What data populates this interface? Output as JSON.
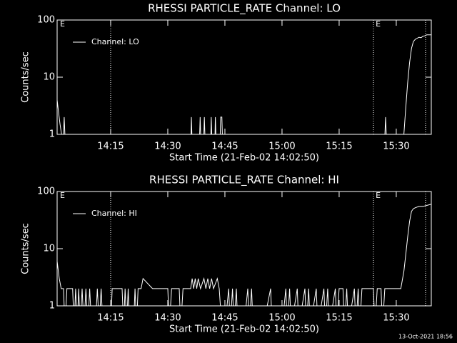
{
  "chart_data": [
    {
      "type": "line",
      "title": "RHESSI PARTICLE_RATE Channel: LO",
      "xlabel": "Start Time (21-Feb-02 14:02:50)",
      "ylabel": "Counts/sec",
      "log_y": true,
      "ylim": [
        1,
        100
      ],
      "yticks": [
        1,
        10,
        100
      ],
      "xlim": [
        0.94,
        99.2
      ],
      "xticks": [
        {
          "value": 15,
          "label": "14:15"
        },
        {
          "value": 30,
          "label": "14:30"
        },
        {
          "value": 45,
          "label": "14:45"
        },
        {
          "value": 60,
          "label": "15:00"
        },
        {
          "value": 75,
          "label": "15:15"
        },
        {
          "value": 90,
          "label": "15:30"
        }
      ],
      "vlines": [
        15,
        84,
        97.7
      ],
      "annotations": [
        {
          "text": "E",
          "x": 1.7
        },
        {
          "text": "E",
          "x": 84.6
        }
      ],
      "legend": "top-left",
      "x": [
        0.94,
        1.3,
        1.7,
        2.1,
        2.4,
        2.8,
        3.2,
        36.0,
        36.2,
        36.5,
        38.2,
        38.5,
        38.8,
        39.3,
        39.6,
        39.9,
        41.2,
        41.4,
        41.7,
        42.3,
        42.5,
        42.8,
        43.6,
        43.9,
        44.2,
        44.5,
        86.8,
        87.2,
        87.6,
        91.6,
        92,
        92.5,
        93,
        93.5,
        94,
        94.5,
        95,
        95.5,
        96,
        96.5,
        97,
        97.5,
        98,
        99.2
      ],
      "series": [
        {
          "name": "Channel: LO",
          "color": "#ffffff",
          "values": [
            4,
            2.5,
            1.5,
            1,
            0,
            2,
            0,
            0,
            2,
            0,
            0,
            2,
            0,
            0,
            2,
            0,
            0,
            2,
            0,
            0,
            2,
            0,
            0,
            2,
            2,
            0,
            0,
            2,
            0,
            0,
            1,
            3,
            8,
            18,
            32,
            42,
            46,
            48,
            50,
            49,
            52,
            53,
            55,
            55
          ]
        }
      ]
    },
    {
      "type": "line",
      "title": "RHESSI PARTICLE_RATE Channel: HI",
      "xlabel": "Start Time (21-Feb-02 14:02:50)",
      "ylabel": "Counts/sec",
      "log_y": true,
      "ylim": [
        1,
        100
      ],
      "yticks": [
        1,
        10,
        100
      ],
      "xlim": [
        0.94,
        99.2
      ],
      "xticks": [
        {
          "value": 15,
          "label": "14:15"
        },
        {
          "value": 30,
          "label": "14:30"
        },
        {
          "value": 45,
          "label": "14:45"
        },
        {
          "value": 60,
          "label": "15:00"
        },
        {
          "value": 75,
          "label": "15:15"
        },
        {
          "value": 90,
          "label": "15:30"
        }
      ],
      "vlines": [
        15,
        84,
        97.7
      ],
      "annotations": [
        {
          "text": "E",
          "x": 1.7
        },
        {
          "text": "E",
          "x": 84.6
        }
      ],
      "legend": "top-left",
      "x": [
        0.94,
        1.5,
        2,
        2.6,
        3,
        3.5,
        5,
        5.4,
        5.8,
        6.2,
        6.6,
        7,
        7.5,
        8,
        8.5,
        9,
        9.5,
        10,
        11,
        11.5,
        12,
        12.5,
        13,
        15,
        15.4,
        18,
        18.4,
        18.8,
        19.2,
        19.6,
        20,
        21,
        21.4,
        21.8,
        22.2,
        23,
        23.5,
        26,
        30,
        30.4,
        31,
        33,
        33.4,
        34,
        36,
        36.4,
        36.8,
        37.2,
        37.6,
        38,
        38.6,
        39.5,
        40,
        40.5,
        41,
        41.5,
        42,
        43,
        43.5,
        44.2,
        45,
        46,
        46.4,
        47,
        47.4,
        48,
        48.4,
        50,
        51,
        51.4,
        52,
        52.4,
        55,
        57,
        57.4,
        60,
        61,
        61.4,
        62,
        62.4,
        64,
        64.4,
        66,
        66.4,
        67,
        67.4,
        69,
        69.4,
        71,
        71.4,
        72,
        72.4,
        74,
        74.4,
        75,
        76,
        76.4,
        77,
        77.4,
        79,
        79.4,
        80,
        80.4,
        81,
        84,
        84.4,
        85,
        86,
        86.4,
        87,
        89,
        90.5,
        91.2,
        92,
        92.5,
        93,
        93.5,
        94,
        94.5,
        95,
        96,
        97,
        98,
        99.2
      ],
      "series": [
        {
          "name": "Channel: HI",
          "color": "#ffffff",
          "values": [
            6,
            3,
            2,
            2,
            0,
            2,
            2,
            0,
            2,
            0,
            2,
            0,
            2,
            0,
            2,
            0,
            2,
            0,
            0,
            2,
            0,
            2,
            0,
            0,
            2,
            2,
            0,
            2,
            0,
            2,
            0,
            0,
            2,
            0,
            2,
            2,
            3,
            2,
            2,
            0,
            2,
            2,
            0,
            2,
            2,
            3,
            2,
            3,
            2,
            3,
            2,
            3,
            2,
            3,
            2,
            3,
            2,
            3,
            2,
            0,
            0,
            2,
            0,
            2,
            0,
            2,
            0,
            0,
            2,
            0,
            2,
            0,
            0,
            2,
            0,
            0,
            2,
            0,
            2,
            0,
            2,
            0,
            2,
            0,
            2,
            0,
            2,
            0,
            2,
            0,
            2,
            0,
            2,
            0,
            2,
            2,
            0,
            2,
            0,
            2,
            0,
            2,
            0,
            2,
            2,
            0,
            2,
            2,
            0,
            2,
            2,
            2,
            2,
            4,
            8,
            16,
            30,
            45,
            50,
            52,
            55,
            55,
            57,
            60
          ]
        }
      ]
    }
  ],
  "footer": "13-Oct-2021 18:56"
}
